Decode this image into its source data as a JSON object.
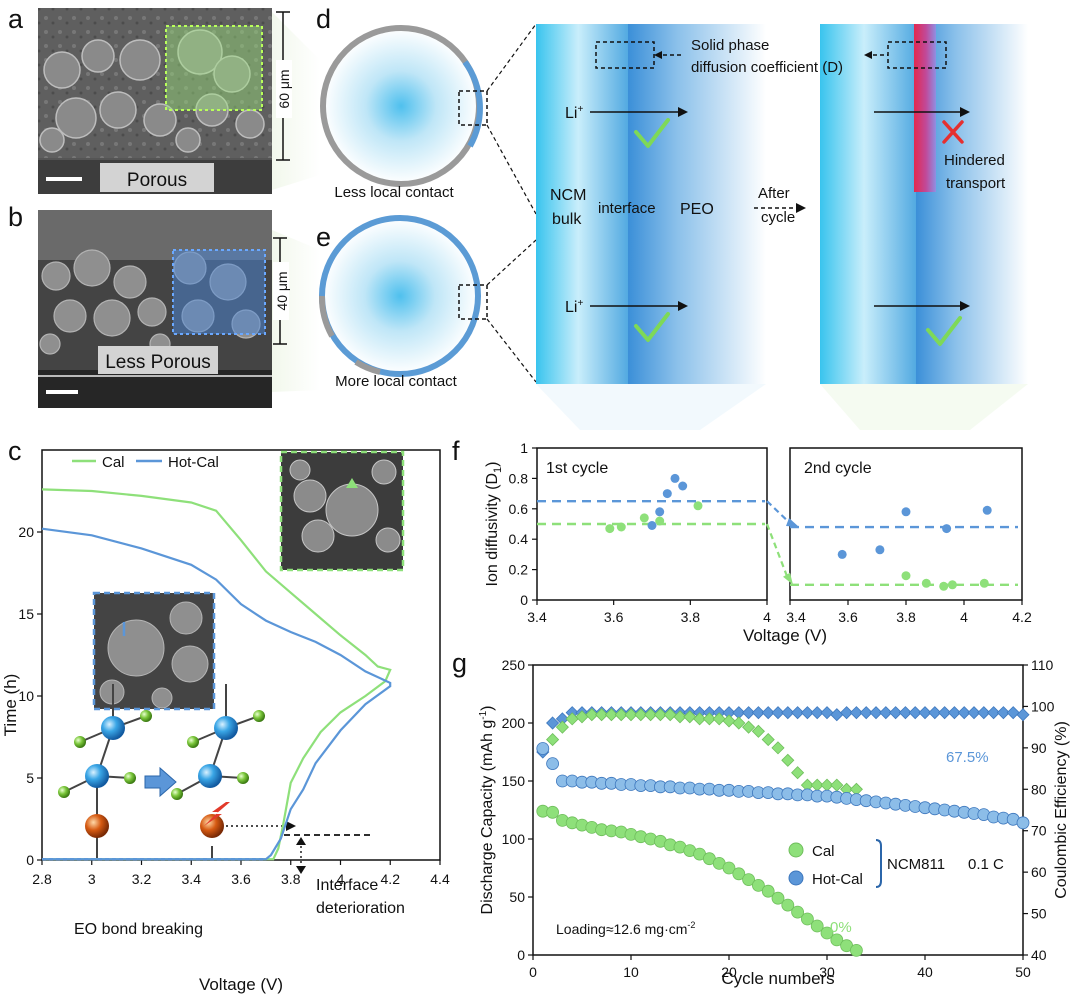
{
  "panel_labels": {
    "a": "a",
    "b": "b",
    "c": "c",
    "d": "d",
    "e": "e",
    "f": "f",
    "g": "g"
  },
  "panel_a": {
    "thickness": "60 μm",
    "caption": "Porous"
  },
  "panel_b": {
    "thickness": "40 μm",
    "caption": "Less Porous"
  },
  "panel_d": {
    "caption": "Less local contact"
  },
  "panel_e": {
    "caption": "More local contact"
  },
  "interface_schematic": {
    "diffusion_label_1": "Solid phase",
    "diffusion_label_2": "diffusion coefficient (D)",
    "li_ion": "Li",
    "li_sup": "+",
    "ncm_1": "NCM",
    "ncm_2": "bulk",
    "interface": "interface",
    "peo": "PEO",
    "after_1": "After",
    "after_2": "cycle",
    "hindered_1": "Hindered",
    "hindered_2": "transport"
  },
  "colors": {
    "cal": "#8ee07a",
    "hot_cal": "#5b96d8",
    "interface_red": "#e2294f",
    "check": "#7ed957"
  },
  "chart_data": [
    {
      "id": "c",
      "type": "line",
      "xlabel": "Voltage (V)",
      "ylabel": "Time (h)",
      "xlim": [
        2.8,
        4.4
      ],
      "ylim": [
        0,
        25
      ],
      "x_ticks": [
        "2.8",
        "3",
        "3.2",
        "3.4",
        "3.6",
        "3.8",
        "4",
        "4.2",
        "4.4"
      ],
      "y_ticks": [
        "0",
        "5",
        "10",
        "15",
        "20"
      ],
      "legend": "top-left",
      "series": [
        {
          "name": "Cal",
          "color": "#8ee07a",
          "points": [
            [
              2.8,
              22.6
            ],
            [
              3.0,
              22.5
            ],
            [
              3.2,
              22.2
            ],
            [
              3.4,
              21.8
            ],
            [
              3.5,
              21.3
            ],
            [
              3.6,
              19.5
            ],
            [
              3.7,
              17.6
            ],
            [
              3.8,
              16.3
            ],
            [
              3.9,
              15.0
            ],
            [
              4.0,
              13.7
            ],
            [
              4.1,
              12.5
            ],
            [
              4.15,
              11.8
            ],
            [
              4.2,
              11.6
            ],
            [
              4.18,
              10.9
            ],
            [
              4.1,
              10.0
            ],
            [
              4.0,
              9.0
            ],
            [
              3.92,
              7.8
            ],
            [
              3.85,
              6.2
            ],
            [
              3.8,
              4.7
            ],
            [
              3.77,
              2.2
            ],
            [
              3.75,
              0.7
            ],
            [
              3.73,
              0.05
            ],
            [
              2.8,
              0.05
            ]
          ]
        },
        {
          "name": "Hot-Cal",
          "color": "#5b96d8",
          "points": [
            [
              2.8,
              20.2
            ],
            [
              3.0,
              19.8
            ],
            [
              3.2,
              19.0
            ],
            [
              3.4,
              18.0
            ],
            [
              3.5,
              17.1
            ],
            [
              3.6,
              15.6
            ],
            [
              3.7,
              14.6
            ],
            [
              3.8,
              13.9
            ],
            [
              3.9,
              13.3
            ],
            [
              4.0,
              12.5
            ],
            [
              4.1,
              11.5
            ],
            [
              4.2,
              10.8
            ],
            [
              4.2,
              10.6
            ],
            [
              4.1,
              9.5
            ],
            [
              4.0,
              7.9
            ],
            [
              3.9,
              5.9
            ],
            [
              3.85,
              4.3
            ],
            [
              3.8,
              3.1
            ],
            [
              3.76,
              1.3
            ],
            [
              3.72,
              0.3
            ],
            [
              3.7,
              0.05
            ],
            [
              2.8,
              0.05
            ]
          ]
        }
      ],
      "annotations": [
        "EO bond breaking",
        "Interface deterioration"
      ],
      "annotation_lines": [
        "Interface",
        "deterioration"
      ]
    },
    {
      "id": "f",
      "type": "scatter",
      "ylabel": "Ion diffusivity (D",
      "ylabel_sub": "1",
      "ylabel_end": ")",
      "xlabel": "Voltage (V)",
      "ylim": [
        0,
        1
      ],
      "y_ticks": [
        "0",
        "0.2",
        "0.4",
        "0.6",
        "0.8",
        "1"
      ],
      "subplots": [
        {
          "title": "1st cycle",
          "xlim": [
            3.4,
            4.0
          ],
          "x_ticks": [
            "3.4",
            "3.6",
            "3.8",
            "4"
          ],
          "series": [
            {
              "name": "Cal",
              "color": "#8ee07a",
              "dashed_level": 0.5,
              "points": [
                [
                  3.59,
                  0.47
                ],
                [
                  3.62,
                  0.48
                ],
                [
                  3.68,
                  0.54
                ],
                [
                  3.72,
                  0.52
                ],
                [
                  3.82,
                  0.62
                ]
              ]
            },
            {
              "name": "Hot-Cal",
              "color": "#5b96d8",
              "dashed_level": 0.65,
              "points": [
                [
                  3.7,
                  0.49
                ],
                [
                  3.72,
                  0.58
                ],
                [
                  3.74,
                  0.7
                ],
                [
                  3.76,
                  0.8
                ],
                [
                  3.78,
                  0.75
                ]
              ]
            }
          ]
        },
        {
          "title": "2nd cycle",
          "xlim": [
            3.4,
            4.2
          ],
          "x_ticks": [
            "3.4",
            "3.6",
            "3.8",
            "4",
            "4.2"
          ],
          "series": [
            {
              "name": "Cal",
              "color": "#8ee07a",
              "dashed_level": 0.1,
              "points": [
                [
                  3.8,
                  0.16
                ],
                [
                  3.87,
                  0.11
                ],
                [
                  3.93,
                  0.09
                ],
                [
                  3.96,
                  0.1
                ],
                [
                  4.07,
                  0.11
                ]
              ]
            },
            {
              "name": "Hot-Cal",
              "color": "#5b96d8",
              "dashed_level": 0.48,
              "points": [
                [
                  3.58,
                  0.3
                ],
                [
                  3.71,
                  0.33
                ],
                [
                  3.8,
                  0.58
                ],
                [
                  3.94,
                  0.47
                ],
                [
                  4.08,
                  0.59
                ]
              ]
            }
          ]
        }
      ]
    },
    {
      "id": "g",
      "type": "scatter",
      "xlabel": "Cycle numbers",
      "ylabel_left": "Discharge Capacity (mAh g",
      "ylabel_left_sup": "-1",
      "ylabel_left_end": ")",
      "ylabel_right": "Coulombic Efficiency (%)",
      "xlim": [
        0,
        50
      ],
      "ylim_left": [
        0,
        250
      ],
      "ylim_right": [
        40,
        110
      ],
      "x_ticks": [
        "0",
        "10",
        "20",
        "30",
        "40",
        "50"
      ],
      "y_ticks_left": [
        "0",
        "50",
        "100",
        "150",
        "200",
        "250"
      ],
      "y_ticks_right": [
        "40",
        "50",
        "60",
        "70",
        "80",
        "90",
        "100",
        "110"
      ],
      "legend_entries": [
        "Cal",
        "Hot-Cal"
      ],
      "legend_group": "NCM811",
      "rate": "0.1 C",
      "loading": "Loading≈12.6 mg·cm",
      "loading_sup": "-2",
      "retention_hot": "67.5%",
      "retention_cal": "0%",
      "series": [
        {
          "name": "Cal capacity",
          "axis": "left",
          "marker": "circle",
          "color": "#8ee07a",
          "x": [
            1,
            2,
            3,
            4,
            5,
            6,
            7,
            8,
            9,
            10,
            11,
            12,
            13,
            14,
            15,
            16,
            17,
            18,
            19,
            20,
            21,
            22,
            23,
            24,
            25,
            26,
            27,
            28,
            29,
            30,
            31,
            32,
            33
          ],
          "y": [
            124,
            123,
            116,
            114,
            112,
            110,
            108,
            107,
            106,
            104,
            102,
            100,
            98,
            95,
            93,
            90,
            87,
            83,
            79,
            75,
            70,
            65,
            60,
            55,
            49,
            43,
            37,
            31,
            25,
            19,
            13,
            8,
            4
          ]
        },
        {
          "name": "Hot-Cal capacity",
          "axis": "left",
          "marker": "circle",
          "color": "#5b96d8",
          "x": [
            1,
            2,
            3,
            4,
            5,
            6,
            7,
            8,
            9,
            10,
            11,
            12,
            13,
            14,
            15,
            16,
            17,
            18,
            19,
            20,
            21,
            22,
            23,
            24,
            25,
            26,
            27,
            28,
            29,
            30,
            31,
            32,
            33,
            34,
            35,
            36,
            37,
            38,
            39,
            40,
            41,
            42,
            43,
            44,
            45,
            46,
            47,
            48,
            49,
            50
          ],
          "y": [
            178,
            165,
            150,
            150,
            149,
            149,
            148,
            148,
            147,
            147,
            146,
            146,
            145,
            145,
            144,
            144,
            143,
            143,
            142,
            142,
            141,
            141,
            140,
            140,
            139,
            139,
            138,
            138,
            137,
            137,
            136,
            135,
            134,
            133,
            132,
            131,
            130,
            129,
            128,
            127,
            126,
            125,
            124,
            123,
            122,
            121,
            119,
            118,
            117,
            114
          ]
        },
        {
          "name": "Cal efficiency",
          "axis": "right",
          "marker": "diamond",
          "color": "#8ee07a",
          "x": [
            2,
            3,
            4,
            5,
            6,
            7,
            8,
            9,
            10,
            11,
            12,
            13,
            14,
            15,
            16,
            17,
            18,
            19,
            20,
            21,
            22,
            23,
            24,
            25,
            26,
            27,
            28,
            29,
            30,
            31,
            32,
            33
          ],
          "y": [
            92,
            95,
            97,
            97.5,
            98,
            98,
            98,
            98,
            98,
            98,
            98,
            98,
            98,
            97.5,
            97.5,
            97,
            97,
            97,
            96.5,
            96,
            95,
            94,
            92,
            90,
            87,
            84,
            81,
            81,
            81,
            81,
            80,
            80
          ]
        },
        {
          "name": "Hot-Cal efficiency",
          "axis": "right",
          "marker": "diamond",
          "color": "#5b96d8",
          "x": [
            1,
            2,
            3,
            4,
            5,
            6,
            7,
            8,
            9,
            10,
            11,
            12,
            13,
            14,
            15,
            16,
            17,
            18,
            19,
            20,
            21,
            22,
            23,
            24,
            25,
            26,
            27,
            28,
            29,
            30,
            31,
            32,
            33,
            34,
            35,
            36,
            37,
            38,
            39,
            40,
            41,
            42,
            43,
            44,
            45,
            46,
            47,
            48,
            49,
            50
          ],
          "y": [
            89,
            96,
            97,
            98.5,
            98.5,
            98.5,
            98.5,
            98.5,
            98.5,
            98.5,
            98.5,
            98.5,
            98.5,
            98.5,
            98.5,
            98.5,
            98.5,
            98.5,
            98.5,
            98.5,
            98.5,
            98.5,
            98.5,
            98.5,
            98.5,
            98.5,
            98.5,
            98.5,
            98.5,
            98.5,
            98,
            98.5,
            98.5,
            98.5,
            98.5,
            98.5,
            98.5,
            98.5,
            98.5,
            98.5,
            98.5,
            98.5,
            98.5,
            98.5,
            98.5,
            98.5,
            98.5,
            98.5,
            98.5,
            98
          ]
        }
      ]
    }
  ]
}
